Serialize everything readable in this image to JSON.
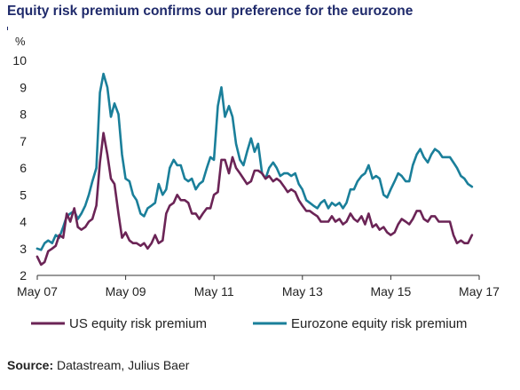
{
  "title": "Equity risk premium confirms our preference for the eurozone",
  "source_label": "Source:",
  "source_text": "Datastream, Julius Baer",
  "chart_data": {
    "type": "line",
    "title": "Equity risk premium confirms our preference for the eurozone",
    "ylabel": "%",
    "ylim": [
      2,
      10
    ],
    "yticks": [
      2,
      3,
      4,
      5,
      6,
      7,
      8,
      9,
      10
    ],
    "xlim": [
      2007.333,
      2017.333
    ],
    "xticks": [
      {
        "label": "May 07",
        "x": 2007.333
      },
      {
        "label": "May 09",
        "x": 2009.333
      },
      {
        "label": "May 11",
        "x": 2011.333
      },
      {
        "label": "May 13",
        "x": 2013.333
      },
      {
        "label": "May 15",
        "x": 2015.333
      },
      {
        "label": "May 17",
        "x": 2017.333
      }
    ],
    "grid": false,
    "legend_position": "bottom",
    "series": [
      {
        "name": "US equity risk premium",
        "color": "#6b2456",
        "points": [
          [
            2007.33,
            2.7
          ],
          [
            2007.42,
            2.4
          ],
          [
            2007.5,
            2.5
          ],
          [
            2007.58,
            2.9
          ],
          [
            2007.67,
            3.0
          ],
          [
            2007.75,
            3.1
          ],
          [
            2007.83,
            3.5
          ],
          [
            2007.92,
            3.4
          ],
          [
            2008.0,
            4.3
          ],
          [
            2008.08,
            4.0
          ],
          [
            2008.17,
            4.5
          ],
          [
            2008.25,
            3.8
          ],
          [
            2008.33,
            3.7
          ],
          [
            2008.42,
            3.8
          ],
          [
            2008.5,
            4.0
          ],
          [
            2008.58,
            4.1
          ],
          [
            2008.67,
            4.6
          ],
          [
            2008.75,
            6.2
          ],
          [
            2008.83,
            7.3
          ],
          [
            2008.92,
            6.5
          ],
          [
            2009.0,
            5.6
          ],
          [
            2009.08,
            5.4
          ],
          [
            2009.17,
            4.3
          ],
          [
            2009.25,
            3.4
          ],
          [
            2009.33,
            3.6
          ],
          [
            2009.42,
            3.3
          ],
          [
            2009.5,
            3.2
          ],
          [
            2009.58,
            3.2
          ],
          [
            2009.67,
            3.1
          ],
          [
            2009.75,
            3.2
          ],
          [
            2009.83,
            3.0
          ],
          [
            2009.92,
            3.2
          ],
          [
            2010.0,
            3.5
          ],
          [
            2010.08,
            3.2
          ],
          [
            2010.17,
            3.3
          ],
          [
            2010.25,
            4.3
          ],
          [
            2010.33,
            4.6
          ],
          [
            2010.42,
            4.7
          ],
          [
            2010.5,
            5.0
          ],
          [
            2010.58,
            4.8
          ],
          [
            2010.67,
            4.8
          ],
          [
            2010.75,
            4.7
          ],
          [
            2010.83,
            4.3
          ],
          [
            2010.92,
            4.3
          ],
          [
            2011.0,
            4.1
          ],
          [
            2011.08,
            4.3
          ],
          [
            2011.17,
            4.5
          ],
          [
            2011.25,
            4.5
          ],
          [
            2011.33,
            5.0
          ],
          [
            2011.42,
            5.1
          ],
          [
            2011.5,
            6.3
          ],
          [
            2011.58,
            6.3
          ],
          [
            2011.67,
            5.8
          ],
          [
            2011.75,
            6.4
          ],
          [
            2011.83,
            6.0
          ],
          [
            2011.92,
            5.8
          ],
          [
            2012.0,
            5.6
          ],
          [
            2012.08,
            5.4
          ],
          [
            2012.17,
            5.5
          ],
          [
            2012.25,
            5.9
          ],
          [
            2012.33,
            5.9
          ],
          [
            2012.42,
            5.8
          ],
          [
            2012.5,
            5.6
          ],
          [
            2012.58,
            5.7
          ],
          [
            2012.67,
            5.5
          ],
          [
            2012.75,
            5.6
          ],
          [
            2012.83,
            5.5
          ],
          [
            2012.92,
            5.3
          ],
          [
            2013.0,
            5.1
          ],
          [
            2013.08,
            5.2
          ],
          [
            2013.17,
            5.1
          ],
          [
            2013.25,
            4.8
          ],
          [
            2013.33,
            4.6
          ],
          [
            2013.42,
            4.4
          ],
          [
            2013.5,
            4.4
          ],
          [
            2013.58,
            4.3
          ],
          [
            2013.67,
            4.2
          ],
          [
            2013.75,
            4.0
          ],
          [
            2013.83,
            4.0
          ],
          [
            2013.92,
            4.0
          ],
          [
            2014.0,
            4.2
          ],
          [
            2014.08,
            4.0
          ],
          [
            2014.17,
            4.1
          ],
          [
            2014.25,
            3.9
          ],
          [
            2014.33,
            4.0
          ],
          [
            2014.42,
            4.3
          ],
          [
            2014.5,
            4.1
          ],
          [
            2014.58,
            4.0
          ],
          [
            2014.67,
            4.2
          ],
          [
            2014.75,
            3.9
          ],
          [
            2014.83,
            4.3
          ],
          [
            2014.92,
            3.8
          ],
          [
            2015.0,
            3.9
          ],
          [
            2015.08,
            3.7
          ],
          [
            2015.17,
            3.8
          ],
          [
            2015.25,
            3.6
          ],
          [
            2015.33,
            3.5
          ],
          [
            2015.42,
            3.6
          ],
          [
            2015.5,
            3.9
          ],
          [
            2015.58,
            4.1
          ],
          [
            2015.67,
            4.0
          ],
          [
            2015.75,
            3.9
          ],
          [
            2015.83,
            4.1
          ],
          [
            2015.92,
            4.4
          ],
          [
            2016.0,
            4.4
          ],
          [
            2016.08,
            4.1
          ],
          [
            2016.17,
            4.0
          ],
          [
            2016.25,
            4.2
          ],
          [
            2016.33,
            4.2
          ],
          [
            2016.42,
            4.0
          ],
          [
            2016.5,
            4.0
          ],
          [
            2016.58,
            4.0
          ],
          [
            2016.67,
            4.0
          ],
          [
            2016.75,
            3.5
          ],
          [
            2016.83,
            3.2
          ],
          [
            2016.92,
            3.3
          ],
          [
            2017.0,
            3.2
          ],
          [
            2017.08,
            3.2
          ],
          [
            2017.17,
            3.5
          ]
        ]
      },
      {
        "name": "Eurozone equity risk premium",
        "color": "#1a7f9a",
        "points": [
          [
            2007.33,
            3.0
          ],
          [
            2007.42,
            2.95
          ],
          [
            2007.5,
            3.2
          ],
          [
            2007.58,
            3.3
          ],
          [
            2007.67,
            3.2
          ],
          [
            2007.75,
            3.5
          ],
          [
            2007.83,
            3.4
          ],
          [
            2007.92,
            3.8
          ],
          [
            2008.0,
            4.2
          ],
          [
            2008.08,
            4.3
          ],
          [
            2008.17,
            4.4
          ],
          [
            2008.25,
            4.1
          ],
          [
            2008.33,
            4.3
          ],
          [
            2008.42,
            4.6
          ],
          [
            2008.5,
            5.0
          ],
          [
            2008.58,
            5.5
          ],
          [
            2008.67,
            6.0
          ],
          [
            2008.75,
            8.8
          ],
          [
            2008.83,
            9.5
          ],
          [
            2008.92,
            9.0
          ],
          [
            2009.0,
            7.9
          ],
          [
            2009.08,
            8.4
          ],
          [
            2009.17,
            8.0
          ],
          [
            2009.25,
            6.5
          ],
          [
            2009.33,
            5.6
          ],
          [
            2009.42,
            5.5
          ],
          [
            2009.5,
            5.0
          ],
          [
            2009.58,
            4.8
          ],
          [
            2009.67,
            4.3
          ],
          [
            2009.75,
            4.2
          ],
          [
            2009.83,
            4.5
          ],
          [
            2009.92,
            4.6
          ],
          [
            2010.0,
            4.7
          ],
          [
            2010.08,
            5.4
          ],
          [
            2010.17,
            5.0
          ],
          [
            2010.25,
            5.2
          ],
          [
            2010.33,
            6.0
          ],
          [
            2010.42,
            6.3
          ],
          [
            2010.5,
            6.1
          ],
          [
            2010.58,
            6.1
          ],
          [
            2010.67,
            5.6
          ],
          [
            2010.75,
            5.5
          ],
          [
            2010.83,
            5.6
          ],
          [
            2010.92,
            5.2
          ],
          [
            2011.0,
            5.4
          ],
          [
            2011.08,
            5.5
          ],
          [
            2011.17,
            6.0
          ],
          [
            2011.25,
            6.4
          ],
          [
            2011.33,
            6.3
          ],
          [
            2011.42,
            8.3
          ],
          [
            2011.5,
            9.0
          ],
          [
            2011.58,
            7.9
          ],
          [
            2011.67,
            8.3
          ],
          [
            2011.75,
            7.9
          ],
          [
            2011.83,
            6.9
          ],
          [
            2011.92,
            6.3
          ],
          [
            2012.0,
            6.1
          ],
          [
            2012.08,
            6.6
          ],
          [
            2012.17,
            7.1
          ],
          [
            2012.25,
            6.6
          ],
          [
            2012.33,
            6.9
          ],
          [
            2012.42,
            5.8
          ],
          [
            2012.5,
            5.6
          ],
          [
            2012.58,
            6.0
          ],
          [
            2012.67,
            6.2
          ],
          [
            2012.75,
            6.0
          ],
          [
            2012.83,
            5.7
          ],
          [
            2012.92,
            5.8
          ],
          [
            2013.0,
            5.8
          ],
          [
            2013.08,
            5.7
          ],
          [
            2013.17,
            5.8
          ],
          [
            2013.25,
            5.4
          ],
          [
            2013.33,
            5.2
          ],
          [
            2013.42,
            4.8
          ],
          [
            2013.5,
            4.7
          ],
          [
            2013.58,
            4.6
          ],
          [
            2013.67,
            4.5
          ],
          [
            2013.75,
            4.7
          ],
          [
            2013.83,
            4.8
          ],
          [
            2013.92,
            4.5
          ],
          [
            2014.0,
            4.7
          ],
          [
            2014.08,
            4.6
          ],
          [
            2014.17,
            4.7
          ],
          [
            2014.25,
            4.5
          ],
          [
            2014.33,
            4.7
          ],
          [
            2014.42,
            5.2
          ],
          [
            2014.5,
            5.2
          ],
          [
            2014.58,
            5.5
          ],
          [
            2014.67,
            5.7
          ],
          [
            2014.75,
            5.8
          ],
          [
            2014.83,
            6.1
          ],
          [
            2014.92,
            5.6
          ],
          [
            2015.0,
            5.7
          ],
          [
            2015.08,
            5.6
          ],
          [
            2015.17,
            5.0
          ],
          [
            2015.25,
            4.9
          ],
          [
            2015.33,
            5.2
          ],
          [
            2015.42,
            5.5
          ],
          [
            2015.5,
            5.8
          ],
          [
            2015.58,
            5.7
          ],
          [
            2015.67,
            5.5
          ],
          [
            2015.75,
            5.5
          ],
          [
            2015.83,
            6.1
          ],
          [
            2015.92,
            6.5
          ],
          [
            2016.0,
            6.7
          ],
          [
            2016.08,
            6.4
          ],
          [
            2016.17,
            6.2
          ],
          [
            2016.25,
            6.5
          ],
          [
            2016.33,
            6.7
          ],
          [
            2016.42,
            6.6
          ],
          [
            2016.5,
            6.4
          ],
          [
            2016.58,
            6.4
          ],
          [
            2016.67,
            6.4
          ],
          [
            2016.75,
            6.2
          ],
          [
            2016.83,
            6.0
          ],
          [
            2016.92,
            5.7
          ],
          [
            2017.0,
            5.6
          ],
          [
            2017.08,
            5.4
          ],
          [
            2017.17,
            5.3
          ]
        ]
      }
    ]
  }
}
